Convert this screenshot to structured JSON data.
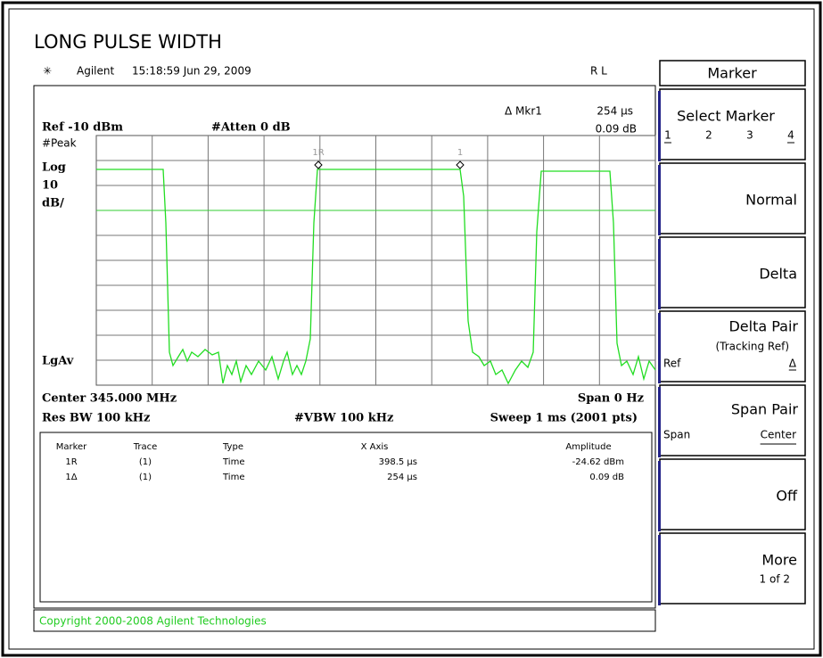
{
  "header": {
    "title": "LONG PULSE WIDTH",
    "instrument": "Agilent",
    "timestamp": "15:18:59  Jun 29, 2009",
    "status": "R L"
  },
  "menu": {
    "title": "Marker",
    "keys": [
      {
        "label": "Select Marker",
        "options": [
          "1",
          "2",
          "3",
          "4"
        ]
      },
      {
        "label": "Normal"
      },
      {
        "label": "Delta"
      },
      {
        "label": "Delta Pair",
        "sub": "(Tracking Ref)",
        "options": [
          "Ref",
          "Δ"
        ]
      },
      {
        "label": "Span Pair",
        "options": [
          "Span",
          "Center"
        ]
      },
      {
        "label": "Off"
      },
      {
        "label": "More",
        "sub": "1 of 2"
      }
    ]
  },
  "display": {
    "ref": "Ref -10 dBm",
    "atten": "#Atten 0 dB",
    "detector": "#Peak",
    "scale": "Log",
    "scale_value": "10",
    "scale_unit": "dB/",
    "average": "LgAv",
    "marker_label": "Δ Mkr1",
    "marker_x": "254 µs",
    "marker_y": "0.09 dB",
    "trace_markers": [
      "1R",
      "1"
    ]
  },
  "settings": {
    "center": "Center 345.000 MHz",
    "span": "Span 0 Hz",
    "rbw": "Res BW 100 kHz",
    "vbw": "#VBW 100 kHz",
    "sweep": "Sweep 1 ms (2001 pts)"
  },
  "table": {
    "headers": [
      "Marker",
      "Trace",
      "Type",
      "X Axis",
      "Amplitude"
    ],
    "rows": [
      [
        "1R",
        "(1)",
        "Time",
        "398.5 µs",
        "-24.62 dBm"
      ],
      [
        "1Δ",
        "(1)",
        "Time",
        "254 µs",
        "0.09 dB"
      ]
    ]
  },
  "footer": "Copyright 2000-2008 Agilent Technologies"
}
